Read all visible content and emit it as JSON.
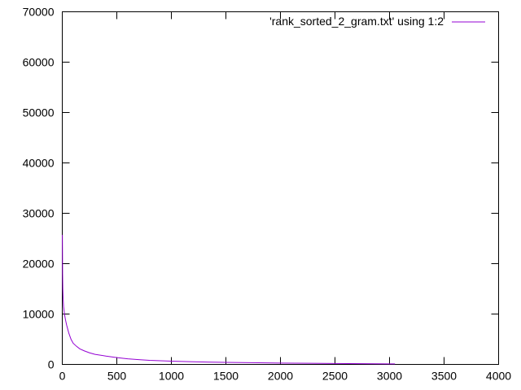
{
  "chart_data": {
    "type": "line",
    "title": "",
    "xlabel": "",
    "ylabel": "",
    "xlim": [
      0,
      4000
    ],
    "ylim": [
      0,
      70000
    ],
    "x_ticks": [
      0,
      500,
      1000,
      1500,
      2000,
      2500,
      3000,
      3500,
      4000
    ],
    "y_ticks": [
      0,
      10000,
      20000,
      30000,
      40000,
      50000,
      60000,
      70000
    ],
    "x_tick_labels": [
      "0",
      "500",
      "1000",
      "1500",
      "2000",
      "2500",
      "3000",
      "3500",
      "4000"
    ],
    "y_tick_labels": [
      "0",
      "10000",
      "20000",
      "30000",
      "40000",
      "50000",
      "60000",
      "70000"
    ],
    "grid": false,
    "legend_position": "top-right",
    "series": [
      {
        "name": "'rank_sorted_2_gram.txt' using 1:2",
        "color": "#9400d3",
        "x": [
          1,
          2,
          3,
          5,
          8,
          12,
          20,
          30,
          40,
          60,
          80,
          100,
          130,
          160,
          200,
          250,
          300,
          400,
          500,
          600,
          700,
          800,
          1000,
          1200,
          1500,
          1800,
          2000,
          2500,
          3000,
          3050
        ],
        "values": [
          25700,
          22000,
          18000,
          15000,
          13000,
          11500,
          10000,
          8800,
          7800,
          6200,
          5000,
          4200,
          3600,
          3100,
          2700,
          2300,
          2000,
          1650,
          1350,
          1100,
          950,
          800,
          650,
          520,
          400,
          320,
          270,
          180,
          110,
          100
        ]
      }
    ]
  }
}
